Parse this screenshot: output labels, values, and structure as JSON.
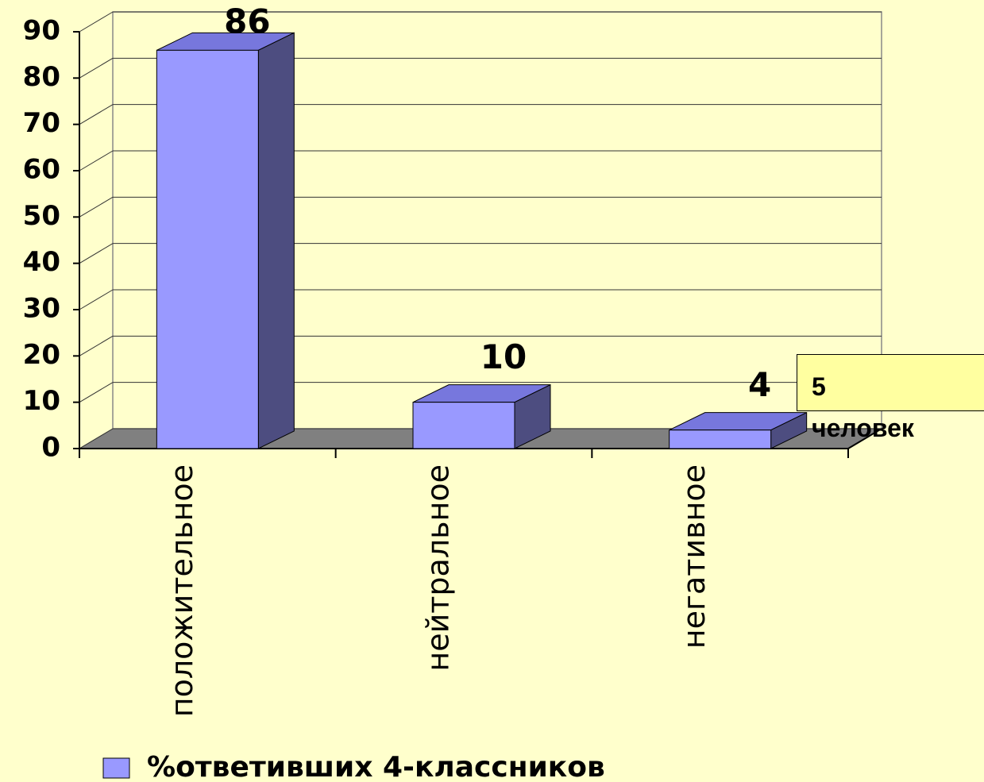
{
  "chart_data": {
    "type": "bar3d",
    "categories": [
      "положительное",
      "нейтральное",
      "негативное"
    ],
    "series": [
      {
        "name": "%ответивших 4-классников",
        "color": "#9999ff",
        "values": [
          86,
          10,
          4
        ]
      }
    ],
    "ylim": [
      0,
      90
    ],
    "yticks": [
      0,
      10,
      20,
      30,
      40,
      50,
      60,
      70,
      80,
      90
    ],
    "grid": true,
    "legend": "bottom",
    "annotation": "5 человек"
  }
}
